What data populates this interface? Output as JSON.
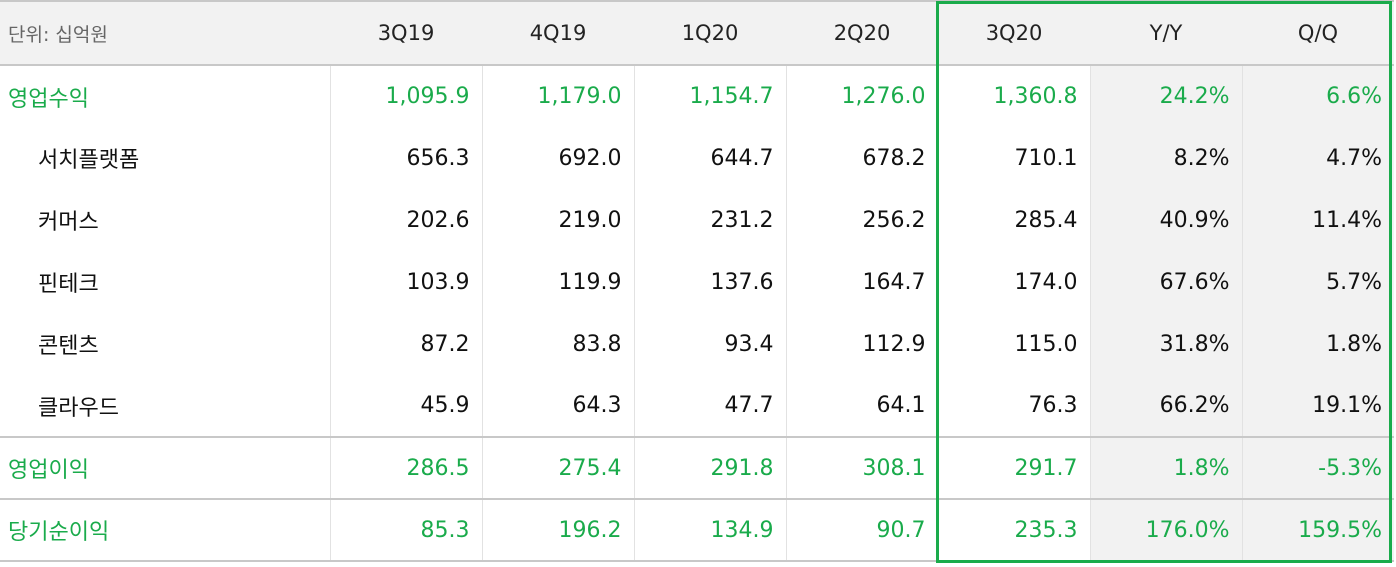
{
  "table": {
    "unit_label": "단위: 십억원",
    "columns": [
      "3Q19",
      "4Q19",
      "1Q20",
      "2Q20",
      "3Q20",
      "Y/Y",
      "Q/Q"
    ],
    "rows": [
      {
        "label": "영업수익",
        "values": [
          "1,095.9",
          "1,179.0",
          "1,154.7",
          "1,276.0",
          "1,360.8",
          "24.2%",
          "6.6%"
        ]
      },
      {
        "label": "서치플랫폼",
        "values": [
          "656.3",
          "692.0",
          "644.7",
          "678.2",
          "710.1",
          "8.2%",
          "4.7%"
        ]
      },
      {
        "label": "커머스",
        "values": [
          "202.6",
          "219.0",
          "231.2",
          "256.2",
          "285.4",
          "40.9%",
          "11.4%"
        ]
      },
      {
        "label": "핀테크",
        "values": [
          "103.9",
          "119.9",
          "137.6",
          "164.7",
          "174.0",
          "67.6%",
          "5.7%"
        ]
      },
      {
        "label": "콘텐츠",
        "values": [
          "87.2",
          "83.8",
          "93.4",
          "112.9",
          "115.0",
          "31.8%",
          "1.8%"
        ]
      },
      {
        "label": "클라우드",
        "values": [
          "45.9",
          "64.3",
          "47.7",
          "64.1",
          "76.3",
          "66.2%",
          "19.1%"
        ]
      },
      {
        "label": "영업이익",
        "values": [
          "286.5",
          "275.4",
          "291.8",
          "308.1",
          "291.7",
          "1.8%",
          "-5.3%"
        ]
      },
      {
        "label": "당기순이익",
        "values": [
          "85.3",
          "196.2",
          "134.9",
          "90.7",
          "235.3",
          "176.0%",
          "159.5%"
        ]
      }
    ]
  },
  "colors": {
    "accent_green": "#1aab4b",
    "header_bg": "#f2f2f2",
    "ratio_bg": "#f2f2f2"
  }
}
